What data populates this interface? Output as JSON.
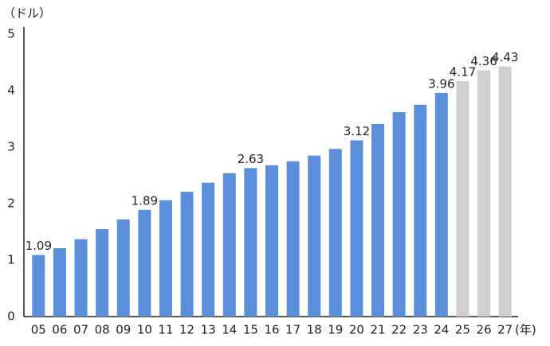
{
  "chart_data": {
    "type": "bar",
    "y_unit_label": "（ドル）",
    "x_unit_label": "(年)",
    "categories": [
      "05",
      "06",
      "07",
      "08",
      "09",
      "10",
      "11",
      "12",
      "13",
      "14",
      "15",
      "16",
      "17",
      "18",
      "19",
      "20",
      "21",
      "22",
      "23",
      "24",
      "25",
      "26",
      "27"
    ],
    "values": [
      1.09,
      1.21,
      1.37,
      1.55,
      1.72,
      1.89,
      2.06,
      2.21,
      2.37,
      2.54,
      2.63,
      2.68,
      2.75,
      2.85,
      2.97,
      3.12,
      3.41,
      3.62,
      3.75,
      3.96,
      4.17,
      4.36,
      4.43
    ],
    "colors": [
      "#5b8fd9",
      "#5b8fd9",
      "#5b8fd9",
      "#5b8fd9",
      "#5b8fd9",
      "#5b8fd9",
      "#5b8fd9",
      "#5b8fd9",
      "#5b8fd9",
      "#5b8fd9",
      "#5b8fd9",
      "#5b8fd9",
      "#5b8fd9",
      "#5b8fd9",
      "#5b8fd9",
      "#5b8fd9",
      "#5b8fd9",
      "#5b8fd9",
      "#5b8fd9",
      "#5b8fd9",
      "#d0d0d0",
      "#d0d0d0",
      "#d0d0d0"
    ],
    "labeled_indices": [
      0,
      5,
      10,
      15,
      19,
      20,
      21,
      22
    ],
    "ylim": [
      0,
      5
    ],
    "yticks": [
      0,
      1,
      2,
      3,
      4,
      5
    ],
    "grid": false
  }
}
